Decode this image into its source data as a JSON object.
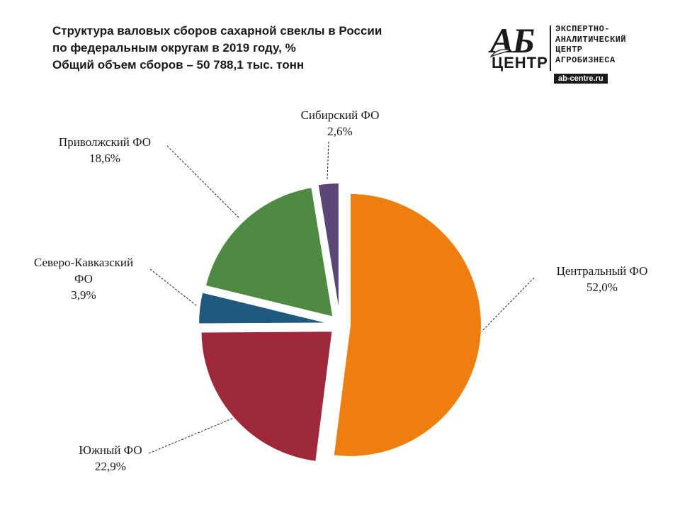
{
  "title": {
    "line1": "Структура валовых сборов сахарной свеклы в России",
    "line2": "по федеральным округам в 2019 году, %",
    "line3": "Общий объем сборов  – 50 788,1 тыс. тонн"
  },
  "logo": {
    "mark_top": "АБ",
    "mark_bottom": "ЦЕНТР",
    "text_lines": [
      "ЭКСПЕРТНО-",
      "АНАЛИТИЧЕСКИЙ",
      "ЦЕНТР",
      "АГРОБИЗНЕСА"
    ],
    "url": "ab-centre.ru"
  },
  "chart_data": {
    "type": "pie",
    "title": "",
    "slices": [
      {
        "name": "Центральный ФО",
        "value": 52.0,
        "label": "52,0%",
        "color": "#ee7f0f"
      },
      {
        "name": "Южный ФО",
        "value": 22.9,
        "label": "22,9%",
        "color": "#a0283b"
      },
      {
        "name": "Северо-Кавказский ФО",
        "value": 3.9,
        "label": "3,9%",
        "color": "#1f5a7e"
      },
      {
        "name": "Приволжский ФО",
        "value": 18.6,
        "label": "18,6%",
        "color": "#4f8a42"
      },
      {
        "name": "Сибирский ФО",
        "value": 2.6,
        "label": "2,6%",
        "color": "#5a4677"
      }
    ],
    "legend": "none"
  }
}
